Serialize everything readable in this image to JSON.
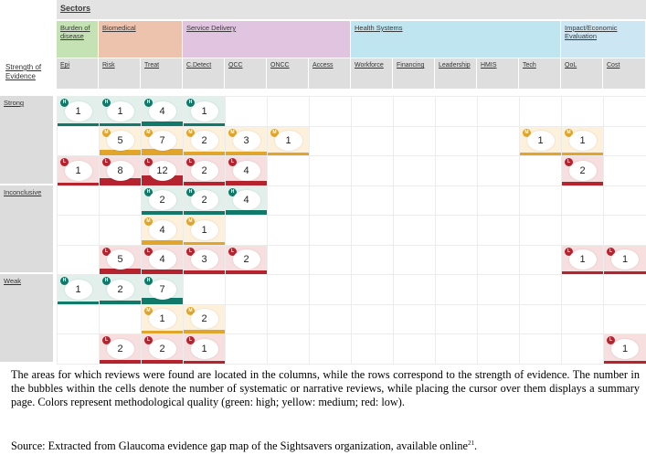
{
  "sectors_header": "Sectors",
  "strength_header": "Strength of Evidence",
  "sectors": [
    {
      "label": "Burden of disease",
      "color": "#c4e2b4"
    },
    {
      "label": "Biomedical",
      "color": "#eec3ad"
    },
    {
      "label": "Service Delivery",
      "color": "#e1c4df"
    },
    {
      "label": "Health Systems",
      "color": "#bfe6f0"
    },
    {
      "label": "Impact/Economic Evaluation",
      "color": "#cde6f4"
    }
  ],
  "columns": [
    "Epi",
    "Risk",
    "Treat",
    "C.Detect",
    "QCC",
    "ONCC",
    "Access",
    "Workforce",
    "Financing",
    "Leadership",
    "HMIS",
    "Tech",
    "QoL",
    "Cost"
  ],
  "strength_levels": [
    "Strong",
    "Inconclusive",
    "Weak"
  ],
  "quality_levels": [
    {
      "key": "high",
      "badge": "H",
      "color": "#11796a",
      "fill": "#e2f0ec"
    },
    {
      "key": "medium",
      "badge": "M",
      "color": "#e0a52a",
      "fill": "#fdf1dc"
    },
    {
      "key": "low",
      "badge": "L",
      "color": "#b5232f",
      "fill": "#f7dedf"
    }
  ],
  "cells": [
    {
      "strength": "Strong",
      "quality": "high",
      "column": "Epi",
      "count": 1
    },
    {
      "strength": "Strong",
      "quality": "high",
      "column": "Risk",
      "count": 1
    },
    {
      "strength": "Strong",
      "quality": "high",
      "column": "Treat",
      "count": 4
    },
    {
      "strength": "Strong",
      "quality": "high",
      "column": "C.Detect",
      "count": 1
    },
    {
      "strength": "Strong",
      "quality": "medium",
      "column": "Risk",
      "count": 5
    },
    {
      "strength": "Strong",
      "quality": "medium",
      "column": "Treat",
      "count": 7
    },
    {
      "strength": "Strong",
      "quality": "medium",
      "column": "C.Detect",
      "count": 2
    },
    {
      "strength": "Strong",
      "quality": "medium",
      "column": "QCC",
      "count": 3
    },
    {
      "strength": "Strong",
      "quality": "medium",
      "column": "ONCC",
      "count": 1
    },
    {
      "strength": "Strong",
      "quality": "medium",
      "column": "Tech",
      "count": 1
    },
    {
      "strength": "Strong",
      "quality": "medium",
      "column": "QoL",
      "count": 1
    },
    {
      "strength": "Strong",
      "quality": "low",
      "column": "Epi",
      "count": 1
    },
    {
      "strength": "Strong",
      "quality": "low",
      "column": "Risk",
      "count": 8
    },
    {
      "strength": "Strong",
      "quality": "low",
      "column": "Treat",
      "count": 12
    },
    {
      "strength": "Strong",
      "quality": "low",
      "column": "C.Detect",
      "count": 2
    },
    {
      "strength": "Strong",
      "quality": "low",
      "column": "QCC",
      "count": 4
    },
    {
      "strength": "Strong",
      "quality": "low",
      "column": "QoL",
      "count": 2
    },
    {
      "strength": "Inconclusive",
      "quality": "high",
      "column": "Treat",
      "count": 2
    },
    {
      "strength": "Inconclusive",
      "quality": "high",
      "column": "C.Detect",
      "count": 2
    },
    {
      "strength": "Inconclusive",
      "quality": "high",
      "column": "QCC",
      "count": 4
    },
    {
      "strength": "Inconclusive",
      "quality": "medium",
      "column": "Treat",
      "count": 4
    },
    {
      "strength": "Inconclusive",
      "quality": "medium",
      "column": "C.Detect",
      "count": 1
    },
    {
      "strength": "Inconclusive",
      "quality": "low",
      "column": "Risk",
      "count": 5
    },
    {
      "strength": "Inconclusive",
      "quality": "low",
      "column": "Treat",
      "count": 4
    },
    {
      "strength": "Inconclusive",
      "quality": "low",
      "column": "C.Detect",
      "count": 3
    },
    {
      "strength": "Inconclusive",
      "quality": "low",
      "column": "QCC",
      "count": 2
    },
    {
      "strength": "Inconclusive",
      "quality": "low",
      "column": "QoL",
      "count": 1
    },
    {
      "strength": "Inconclusive",
      "quality": "low",
      "column": "Cost",
      "count": 1
    },
    {
      "strength": "Weak",
      "quality": "high",
      "column": "Epi",
      "count": 1
    },
    {
      "strength": "Weak",
      "quality": "high",
      "column": "Risk",
      "count": 2
    },
    {
      "strength": "Weak",
      "quality": "high",
      "column": "Treat",
      "count": 7
    },
    {
      "strength": "Weak",
      "quality": "medium",
      "column": "Treat",
      "count": 1
    },
    {
      "strength": "Weak",
      "quality": "medium",
      "column": "C.Detect",
      "count": 2
    },
    {
      "strength": "Weak",
      "quality": "low",
      "column": "Risk",
      "count": 2
    },
    {
      "strength": "Weak",
      "quality": "low",
      "column": "Treat",
      "count": 2
    },
    {
      "strength": "Weak",
      "quality": "low",
      "column": "C.Detect",
      "count": 1
    },
    {
      "strength": "Weak",
      "quality": "low",
      "column": "Cost",
      "count": 1
    }
  ],
  "caption": "The areas for which reviews were found are located in the columns, while the rows correspond to the strength of evidence. The number in the bubbles within the cells denote the number of systematic or narrative reviews, while placing the cursor over them displays a summary page. Colors represent methodological quality (green: high; yellow: medium; red: low).",
  "source": "Source: Extracted from Glaucoma evidence gap map of the Sightsavers organization, available online",
  "source_ref": "21"
}
